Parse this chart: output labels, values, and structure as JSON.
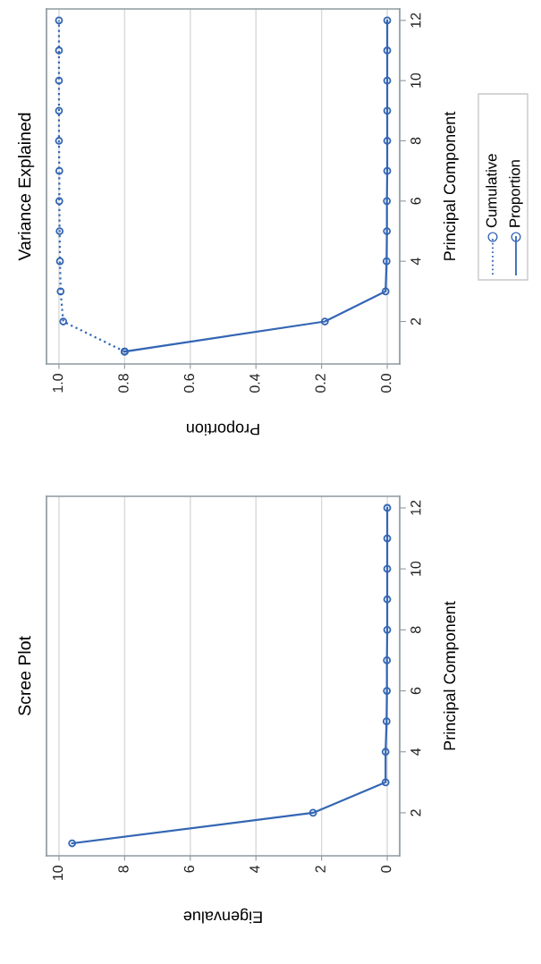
{
  "chart_data": [
    {
      "type": "line",
      "title": "Variance Explained",
      "orientation": "horizontal",
      "xlabel": "Proportion",
      "ylabel": "Principal Component",
      "x": [
        1,
        2,
        3,
        4,
        5,
        6,
        7,
        8,
        9,
        10,
        11,
        12
      ],
      "series": [
        {
          "name": "Cumulative",
          "color": "#3466b4",
          "line_style": "dotted",
          "values": [
            0.8,
            0.987,
            0.995,
            0.997,
            0.998,
            0.999,
            0.999,
            1.0,
            1.0,
            1.0,
            1.0,
            1.0
          ]
        },
        {
          "name": "Proportion",
          "color": "#3466b4",
          "line_style": "solid",
          "values": [
            0.8,
            0.19,
            0.005,
            0.002,
            0.001,
            0.001,
            0.0,
            0.0,
            0.0,
            0.0,
            0.0,
            0.0
          ]
        }
      ],
      "xlim": [
        1.038,
        -0.038
      ],
      "xticks": [
        {
          "value": 1.0,
          "label": "1.0"
        },
        {
          "value": 0.8,
          "label": "0.8"
        },
        {
          "value": 0.6,
          "label": "0.6"
        },
        {
          "value": 0.4,
          "label": "0.4"
        },
        {
          "value": 0.2,
          "label": "0.2"
        },
        {
          "value": 0.0,
          "label": "0.0"
        }
      ],
      "ylim": [
        0.59,
        12.38
      ],
      "yticks": [
        2,
        4,
        6,
        8,
        10,
        12
      ],
      "grid": "x",
      "marker": "circle",
      "legend": "right"
    },
    {
      "type": "line",
      "title": "Scree Plot",
      "orientation": "horizontal",
      "xlabel": "Eigenvalue",
      "ylabel": "Principal Component",
      "x": [
        1,
        2,
        3,
        4,
        5,
        6,
        7,
        8,
        9,
        10,
        11,
        12
      ],
      "series": [
        {
          "color": "#3466b4",
          "line_style": "solid",
          "values": [
            9.6,
            2.26,
            0.05,
            0.05,
            0.02,
            0.01,
            0.01,
            0.0,
            0.0,
            0.0,
            0.0,
            0.0
          ]
        }
      ],
      "xlim": [
        10.38,
        -0.38
      ],
      "xticks": [
        10,
        8,
        6,
        4,
        2,
        0
      ],
      "ylim": [
        0.59,
        12.38
      ],
      "yticks": [
        2,
        4,
        6,
        8,
        10,
        12
      ],
      "grid": "x",
      "marker": "circle",
      "legend": false
    }
  ]
}
